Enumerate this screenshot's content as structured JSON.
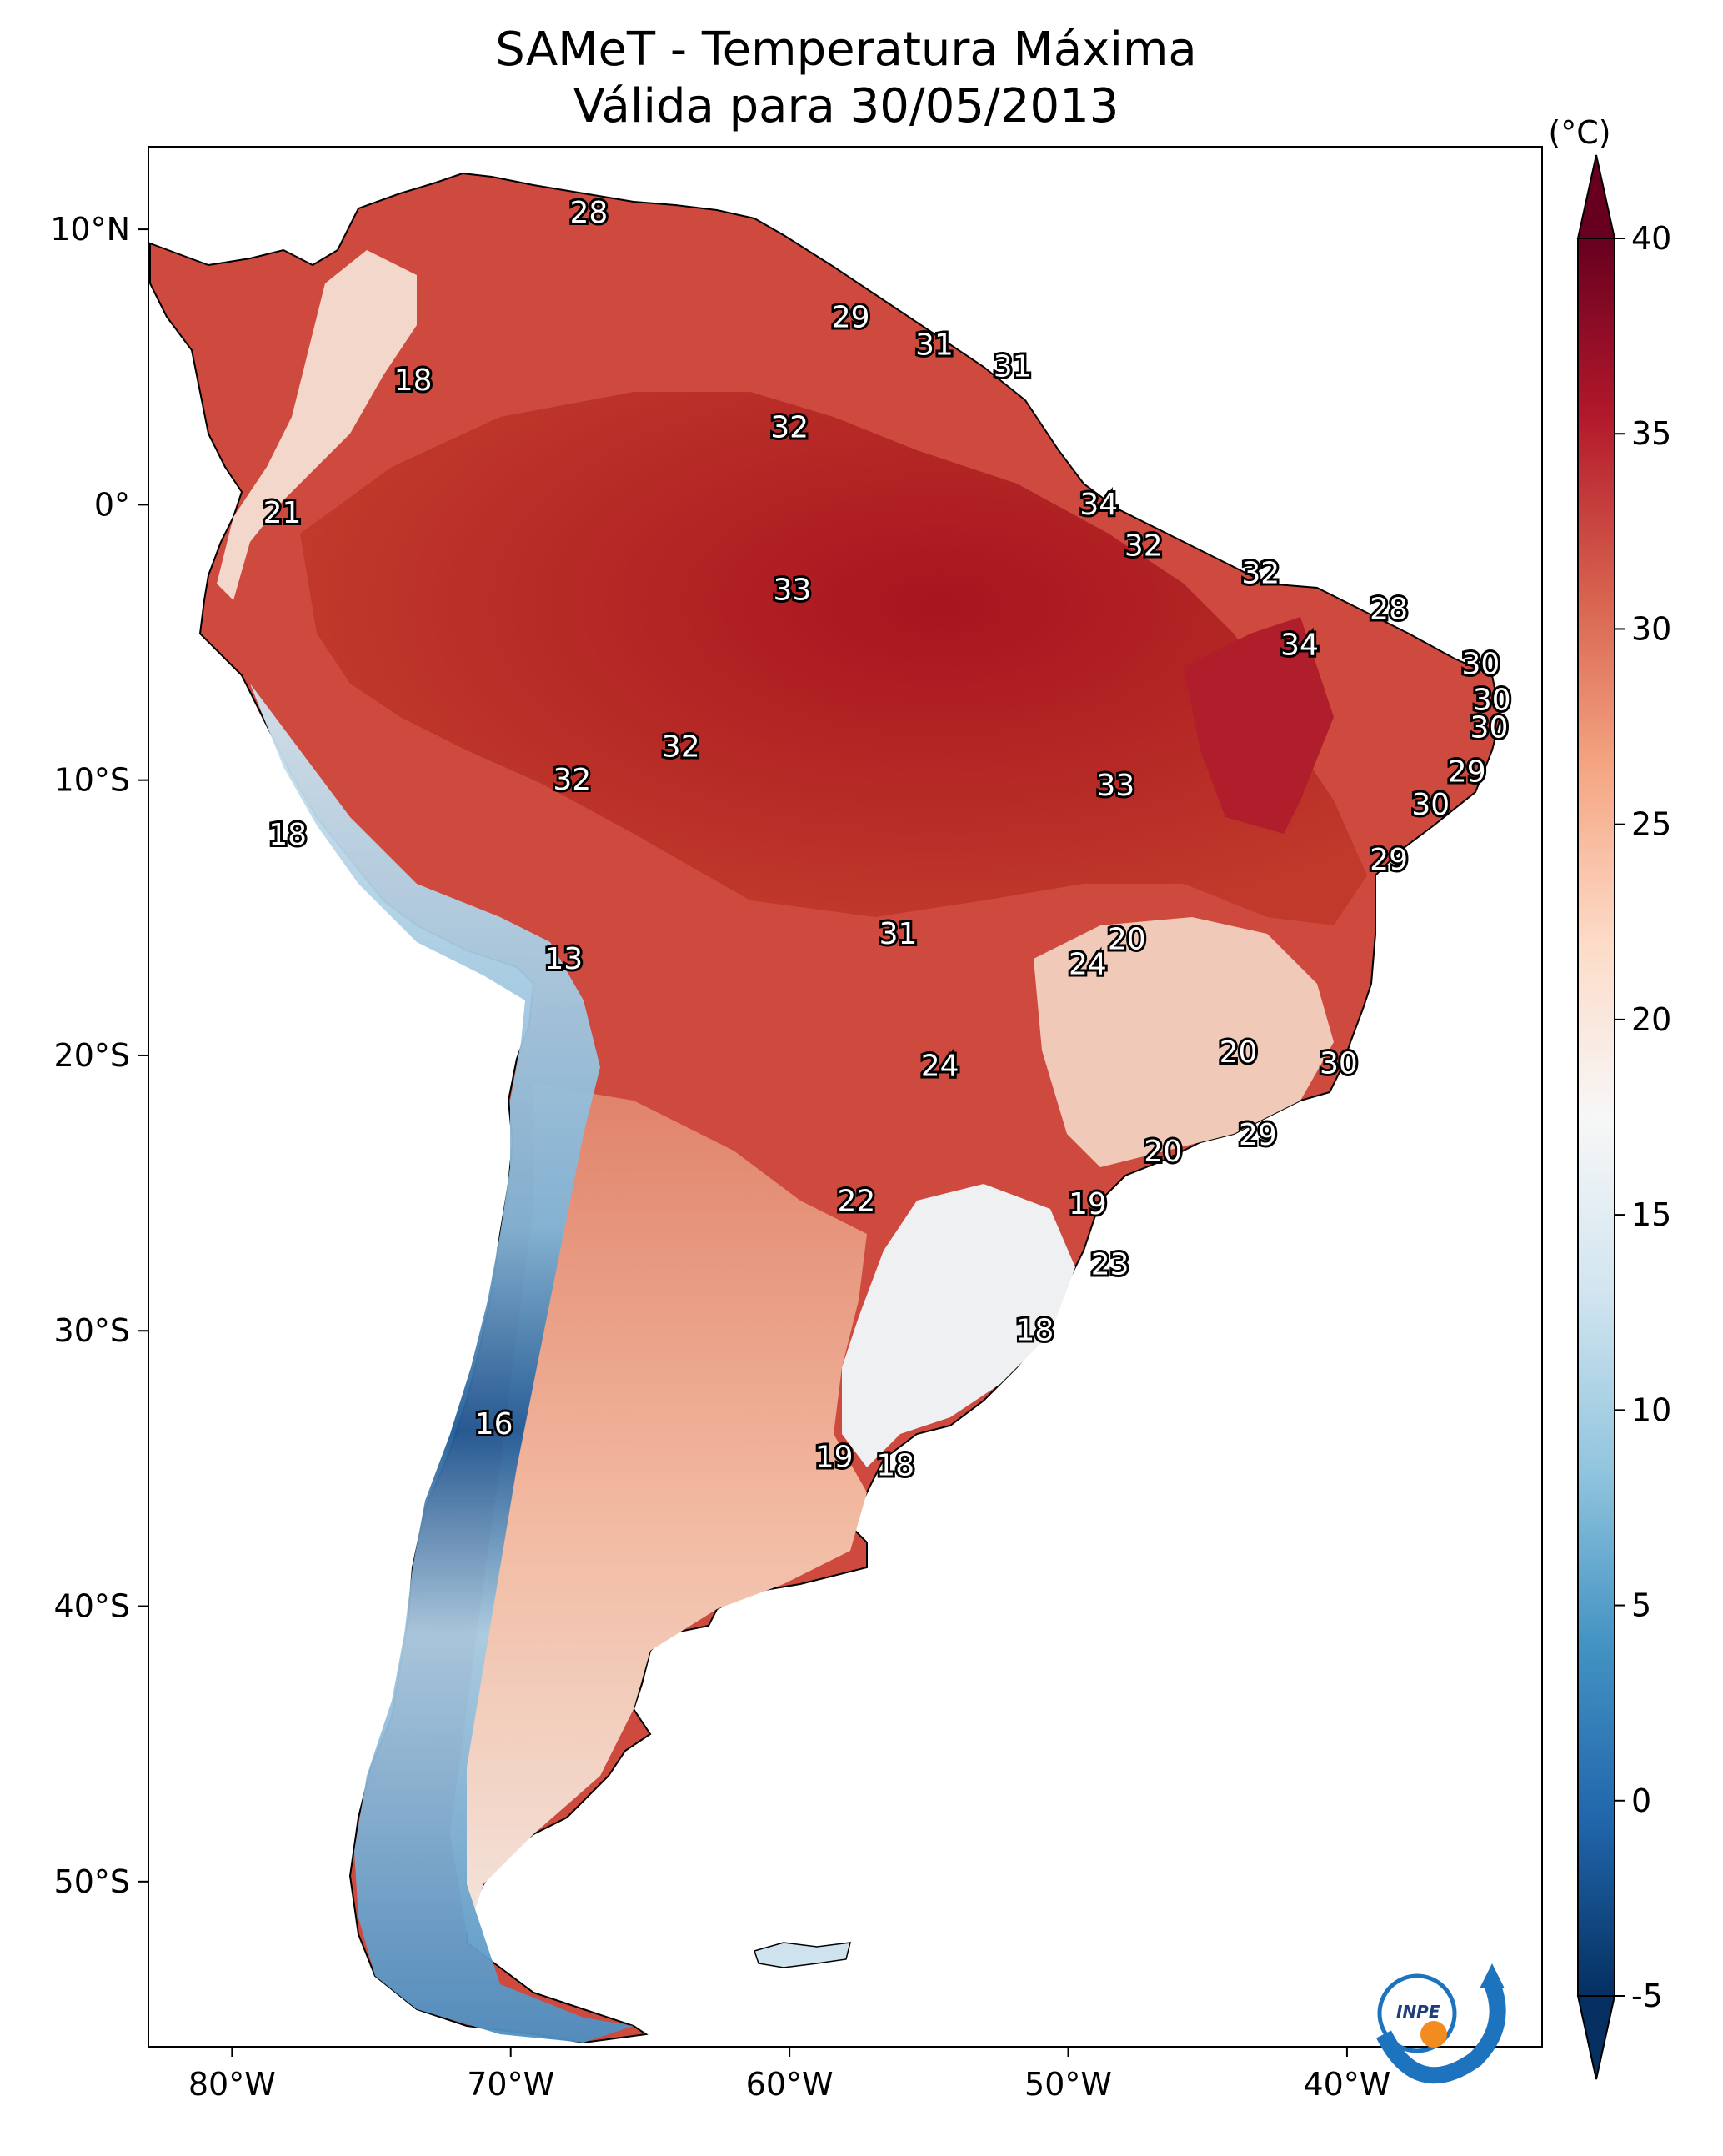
{
  "title": {
    "line1": "SAMeT - Temperatura Máxima",
    "line2": "Válida para 30/05/2013"
  },
  "map": {
    "lon_range": [
      -83,
      -33
    ],
    "lat_range": [
      -56,
      13
    ],
    "x_ticks": [
      {
        "lon": -80,
        "label": "80°W"
      },
      {
        "lon": -70,
        "label": "70°W"
      },
      {
        "lon": -60,
        "label": "60°W"
      },
      {
        "lon": -50,
        "label": "50°W"
      },
      {
        "lon": -40,
        "label": "40°W"
      }
    ],
    "y_ticks": [
      {
        "lat": 10,
        "label": "10°N"
      },
      {
        "lat": 0,
        "label": "0°"
      },
      {
        "lat": -10,
        "label": "10°S"
      },
      {
        "lat": -20,
        "label": "20°S"
      },
      {
        "lat": -30,
        "label": "30°S"
      },
      {
        "lat": -40,
        "label": "40°S"
      },
      {
        "lat": -50,
        "label": "50°S"
      }
    ],
    "station_labels": [
      {
        "lon": -67.2,
        "lat": 10.6,
        "text": "28"
      },
      {
        "lon": -57.8,
        "lat": 6.8,
        "text": "29"
      },
      {
        "lon": -54.8,
        "lat": 5.8,
        "text": "31"
      },
      {
        "lon": -52.0,
        "lat": 5.0,
        "text": "31"
      },
      {
        "lon": -73.5,
        "lat": 4.5,
        "text": "18"
      },
      {
        "lon": -60.0,
        "lat": 2.8,
        "text": "32"
      },
      {
        "lon": -48.9,
        "lat": 0.0,
        "text": "34"
      },
      {
        "lon": -78.2,
        "lat": -0.3,
        "text": "21"
      },
      {
        "lon": -47.3,
        "lat": -1.5,
        "text": "32"
      },
      {
        "lon": -43.1,
        "lat": -2.5,
        "text": "32"
      },
      {
        "lon": -59.9,
        "lat": -3.1,
        "text": "33"
      },
      {
        "lon": -38.5,
        "lat": -3.8,
        "text": "28"
      },
      {
        "lon": -41.7,
        "lat": -5.1,
        "text": "34"
      },
      {
        "lon": -35.2,
        "lat": -5.8,
        "text": "30"
      },
      {
        "lon": -34.8,
        "lat": -7.1,
        "text": "30"
      },
      {
        "lon": -34.9,
        "lat": -8.1,
        "text": "30"
      },
      {
        "lon": -63.9,
        "lat": -8.8,
        "text": "32"
      },
      {
        "lon": -67.8,
        "lat": -10.0,
        "text": "32"
      },
      {
        "lon": -35.7,
        "lat": -9.7,
        "text": "29"
      },
      {
        "lon": -48.3,
        "lat": -10.2,
        "text": "33"
      },
      {
        "lon": -37.0,
        "lat": -10.9,
        "text": "30"
      },
      {
        "lon": -78.0,
        "lat": -12.0,
        "text": "18"
      },
      {
        "lon": -38.5,
        "lat": -12.9,
        "text": "29"
      },
      {
        "lon": -56.1,
        "lat": -15.6,
        "text": "31"
      },
      {
        "lon": -47.9,
        "lat": -15.8,
        "text": "20"
      },
      {
        "lon": -49.3,
        "lat": -16.7,
        "text": "24"
      },
      {
        "lon": -68.1,
        "lat": -16.5,
        "text": "13"
      },
      {
        "lon": -43.9,
        "lat": -19.9,
        "text": "20"
      },
      {
        "lon": -40.3,
        "lat": -20.3,
        "text": "30"
      },
      {
        "lon": -54.6,
        "lat": -20.4,
        "text": "24"
      },
      {
        "lon": -43.2,
        "lat": -22.9,
        "text": "29"
      },
      {
        "lon": -46.6,
        "lat": -23.5,
        "text": "20"
      },
      {
        "lon": -57.6,
        "lat": -25.3,
        "text": "22"
      },
      {
        "lon": -49.3,
        "lat": -25.4,
        "text": "19"
      },
      {
        "lon": -48.5,
        "lat": -27.6,
        "text": "23"
      },
      {
        "lon": -51.2,
        "lat": -30.0,
        "text": "18"
      },
      {
        "lon": -70.6,
        "lat": -33.4,
        "text": "16"
      },
      {
        "lon": -58.4,
        "lat": -34.6,
        "text": "19"
      },
      {
        "lon": -56.2,
        "lat": -34.9,
        "text": "18"
      }
    ]
  },
  "colorbar": {
    "unit": "(°C)",
    "min": -5,
    "max": 40,
    "ticks": [
      {
        "value": 40,
        "label": "40"
      },
      {
        "value": 35,
        "label": "35"
      },
      {
        "value": 30,
        "label": "30"
      },
      {
        "value": 25,
        "label": "25"
      },
      {
        "value": 20,
        "label": "20"
      },
      {
        "value": 15,
        "label": "15"
      },
      {
        "value": 10,
        "label": "10"
      },
      {
        "value": 5,
        "label": "5"
      },
      {
        "value": 0,
        "label": "0"
      },
      {
        "value": -5,
        "label": "-5"
      }
    ],
    "colors": [
      "#053061",
      "#2166ac",
      "#4393c3",
      "#92c5de",
      "#d1e5f0",
      "#f7f7f7",
      "#fddbc7",
      "#f4a582",
      "#d6604d",
      "#b2182b",
      "#67001f"
    ]
  },
  "logo": {
    "text": "INPE"
  },
  "colors": {
    "hot": "#b2182b",
    "warm": "#d6604d",
    "mild": "#f4a582",
    "cool": "#f7f7f7",
    "cold": "#92c5de",
    "frame": "#000000"
  }
}
